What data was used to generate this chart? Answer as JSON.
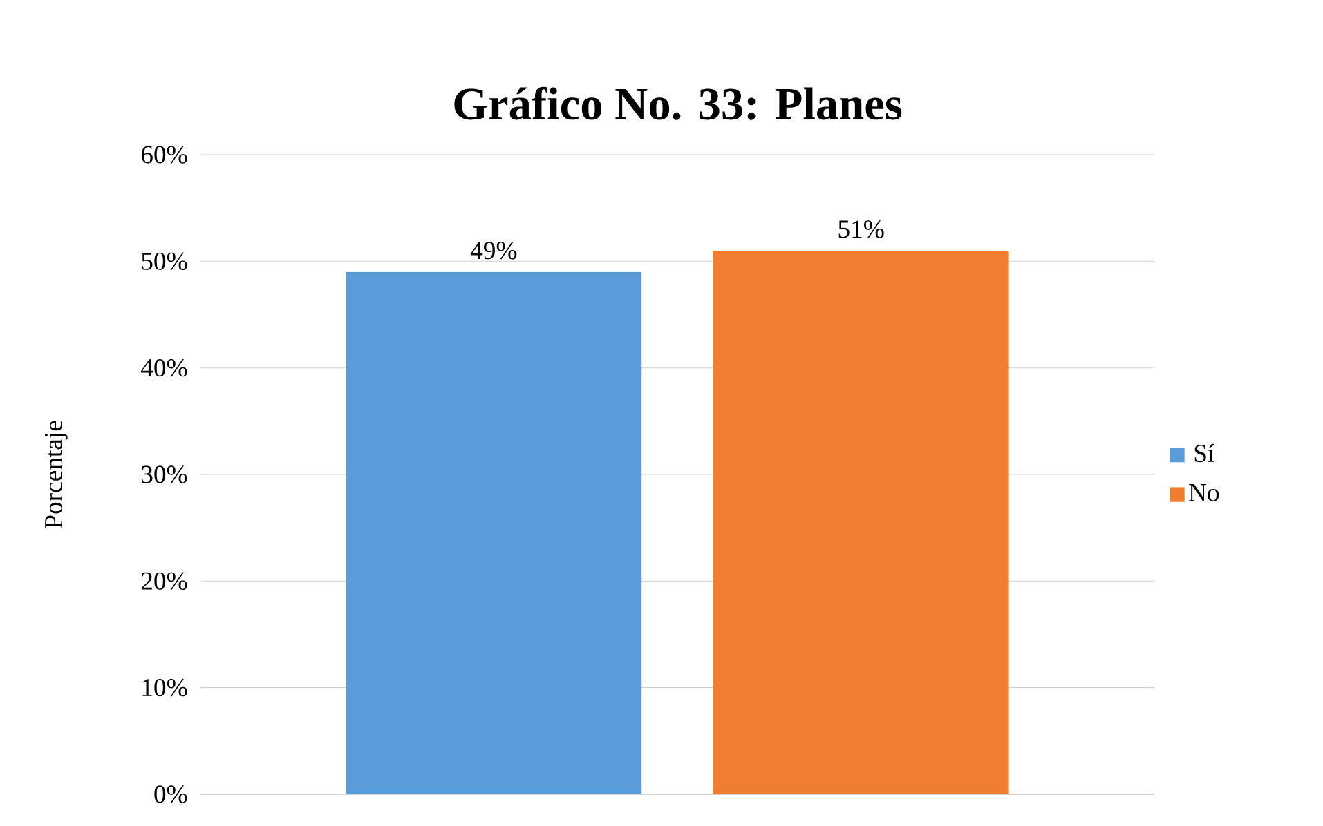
{
  "chart_data": {
    "type": "bar",
    "title": "**Gráfico No. 33: Planes**",
    "ylabel": "Porcentaje",
    "categories": [
      null
    ],
    "series": [
      {
        "name": "Sí",
        "color": "#5a9bd9",
        "values": [
          49
        ],
        "value_labels": [
          "49%"
        ]
      },
      {
        "name": "No",
        "color": "#ef7f2e",
        "values": [
          51
        ],
        "value_labels": [
          "51%"
        ]
      }
    ],
    "ylim": [
      0,
      60
    ],
    "yticks": [
      {
        "value": 0,
        "label": "0%"
      },
      {
        "value": 10,
        "label": "10%"
      },
      {
        "value": 20,
        "label": "20%"
      },
      {
        "value": 30,
        "label": "30%"
      },
      {
        "value": 40,
        "label": "40%"
      },
      {
        "value": 50,
        "label": "50%"
      },
      {
        "value": 60,
        "label": "60%"
      }
    ],
    "grid": "y",
    "legend": "right"
  }
}
